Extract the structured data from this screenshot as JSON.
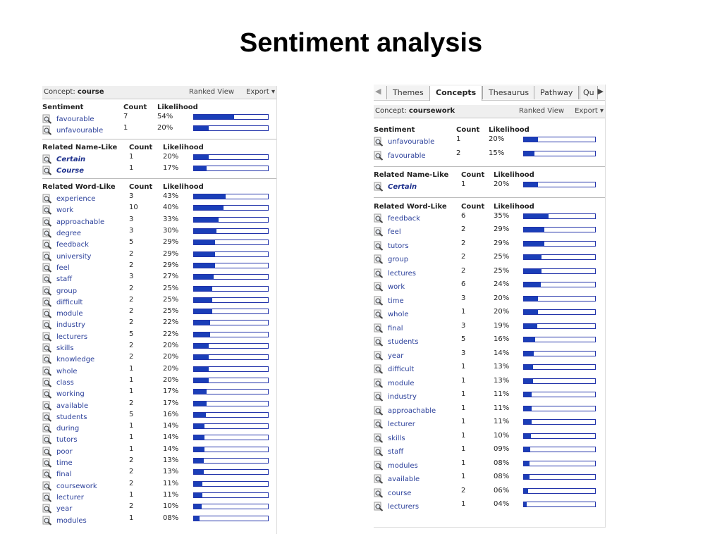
{
  "slide_title": "Sentiment analysis",
  "left_panel": {
    "concept_label": "Concept:",
    "concept_value": "course",
    "ranked_view": "Ranked View",
    "export": "Export ▾",
    "sentiment": {
      "headers": {
        "name": "Sentiment",
        "count": "Count",
        "likelihood": "Likelihood"
      },
      "rows": [
        {
          "term": "favourable",
          "count": "7",
          "pct": "54%",
          "level": 0.54
        },
        {
          "term": "unfavourable",
          "count": "1",
          "pct": "20%",
          "level": 0.2
        }
      ]
    },
    "name_like": {
      "headers": {
        "name": "Related Name-Like",
        "count": "Count",
        "likelihood": "Likelihood"
      },
      "rows": [
        {
          "term": "Certain",
          "count": "1",
          "pct": "20%",
          "level": 0.2
        },
        {
          "term": "Course",
          "count": "1",
          "pct": "17%",
          "level": 0.17
        }
      ]
    },
    "word_like": {
      "headers": {
        "name": "Related Word-Like",
        "count": "Count",
        "likelihood": "Likelihood"
      },
      "rows": [
        {
          "term": "experience",
          "count": "3",
          "pct": "43%",
          "level": 0.43
        },
        {
          "term": "work",
          "count": "10",
          "pct": "40%",
          "level": 0.4
        },
        {
          "term": "approachable",
          "count": "3",
          "pct": "33%",
          "level": 0.33
        },
        {
          "term": "degree",
          "count": "3",
          "pct": "30%",
          "level": 0.3
        },
        {
          "term": "feedback",
          "count": "5",
          "pct": "29%",
          "level": 0.29
        },
        {
          "term": "university",
          "count": "2",
          "pct": "29%",
          "level": 0.29
        },
        {
          "term": "feel",
          "count": "2",
          "pct": "29%",
          "level": 0.29
        },
        {
          "term": "staff",
          "count": "3",
          "pct": "27%",
          "level": 0.27
        },
        {
          "term": "group",
          "count": "2",
          "pct": "25%",
          "level": 0.25
        },
        {
          "term": "difficult",
          "count": "2",
          "pct": "25%",
          "level": 0.25
        },
        {
          "term": "module",
          "count": "2",
          "pct": "25%",
          "level": 0.25
        },
        {
          "term": "industry",
          "count": "2",
          "pct": "22%",
          "level": 0.22
        },
        {
          "term": "lecturers",
          "count": "5",
          "pct": "22%",
          "level": 0.22
        },
        {
          "term": "skills",
          "count": "2",
          "pct": "20%",
          "level": 0.2
        },
        {
          "term": "knowledge",
          "count": "2",
          "pct": "20%",
          "level": 0.2
        },
        {
          "term": "whole",
          "count": "1",
          "pct": "20%",
          "level": 0.2
        },
        {
          "term": "class",
          "count": "1",
          "pct": "20%",
          "level": 0.2
        },
        {
          "term": "working",
          "count": "1",
          "pct": "17%",
          "level": 0.17
        },
        {
          "term": "available",
          "count": "2",
          "pct": "17%",
          "level": 0.17
        },
        {
          "term": "students",
          "count": "5",
          "pct": "16%",
          "level": 0.16
        },
        {
          "term": "during",
          "count": "1",
          "pct": "14%",
          "level": 0.14
        },
        {
          "term": "tutors",
          "count": "1",
          "pct": "14%",
          "level": 0.14
        },
        {
          "term": "poor",
          "count": "1",
          "pct": "14%",
          "level": 0.14
        },
        {
          "term": "time",
          "count": "2",
          "pct": "13%",
          "level": 0.13
        },
        {
          "term": "final",
          "count": "2",
          "pct": "13%",
          "level": 0.13
        },
        {
          "term": "coursework",
          "count": "2",
          "pct": "11%",
          "level": 0.11
        },
        {
          "term": "lecturer",
          "count": "1",
          "pct": "11%",
          "level": 0.11
        },
        {
          "term": "year",
          "count": "2",
          "pct": "10%",
          "level": 0.1
        },
        {
          "term": "modules",
          "count": "1",
          "pct": "08%",
          "level": 0.08
        }
      ]
    }
  },
  "right_panel": {
    "tabs": [
      "Themes",
      "Concepts",
      "Thesaurus",
      "Pathway",
      "Qu"
    ],
    "active_tab": "Concepts",
    "concept_label": "Concept:",
    "concept_value": "coursework",
    "ranked_view": "Ranked View",
    "export": "Export ▾",
    "sentiment": {
      "headers": {
        "name": "Sentiment",
        "count": "Count",
        "likelihood": "Likelihood"
      },
      "rows": [
        {
          "term": "unfavourable",
          "count": "1",
          "pct": "20%",
          "level": 0.2
        },
        {
          "term": "favourable",
          "count": "2",
          "pct": "15%",
          "level": 0.15
        }
      ]
    },
    "name_like": {
      "headers": {
        "name": "Related Name-Like",
        "count": "Count",
        "likelihood": "Likelihood"
      },
      "rows": [
        {
          "term": "Certain",
          "count": "1",
          "pct": "20%",
          "level": 0.2
        }
      ]
    },
    "word_like": {
      "headers": {
        "name": "Related Word-Like",
        "count": "Count",
        "likelihood": "Likelihood"
      },
      "rows": [
        {
          "term": "feedback",
          "count": "6",
          "pct": "35%",
          "level": 0.35
        },
        {
          "term": "feel",
          "count": "2",
          "pct": "29%",
          "level": 0.29
        },
        {
          "term": "tutors",
          "count": "2",
          "pct": "29%",
          "level": 0.29
        },
        {
          "term": "group",
          "count": "2",
          "pct": "25%",
          "level": 0.25
        },
        {
          "term": "lectures",
          "count": "2",
          "pct": "25%",
          "level": 0.25
        },
        {
          "term": "work",
          "count": "6",
          "pct": "24%",
          "level": 0.24
        },
        {
          "term": "time",
          "count": "3",
          "pct": "20%",
          "level": 0.2
        },
        {
          "term": "whole",
          "count": "1",
          "pct": "20%",
          "level": 0.2
        },
        {
          "term": "final",
          "count": "3",
          "pct": "19%",
          "level": 0.19
        },
        {
          "term": "students",
          "count": "5",
          "pct": "16%",
          "level": 0.16
        },
        {
          "term": "year",
          "count": "3",
          "pct": "14%",
          "level": 0.14
        },
        {
          "term": "difficult",
          "count": "1",
          "pct": "13%",
          "level": 0.13
        },
        {
          "term": "module",
          "count": "1",
          "pct": "13%",
          "level": 0.13
        },
        {
          "term": "industry",
          "count": "1",
          "pct": "11%",
          "level": 0.11
        },
        {
          "term": "approachable",
          "count": "1",
          "pct": "11%",
          "level": 0.11
        },
        {
          "term": "lecturer",
          "count": "1",
          "pct": "11%",
          "level": 0.11
        },
        {
          "term": "skills",
          "count": "1",
          "pct": "10%",
          "level": 0.1
        },
        {
          "term": "staff",
          "count": "1",
          "pct": "09%",
          "level": 0.09
        },
        {
          "term": "modules",
          "count": "1",
          "pct": "08%",
          "level": 0.08
        },
        {
          "term": "available",
          "count": "1",
          "pct": "08%",
          "level": 0.08
        },
        {
          "term": "course",
          "count": "2",
          "pct": "06%",
          "level": 0.06
        },
        {
          "term": "lecturers",
          "count": "1",
          "pct": "04%",
          "level": 0.04
        }
      ]
    }
  },
  "colors": {
    "bar_fill": "#1a3eb8",
    "bar_border": "#2233aa",
    "term_link": "#2a3f9a"
  }
}
